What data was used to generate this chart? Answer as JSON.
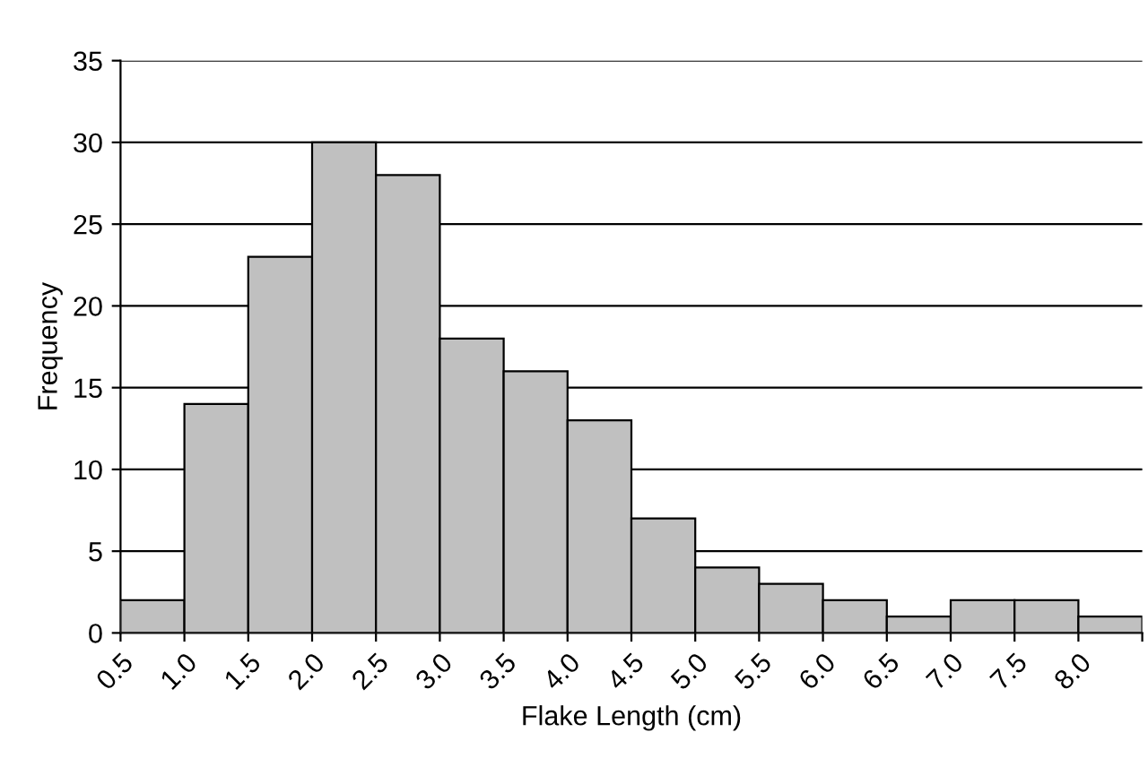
{
  "chart_data": {
    "type": "histogram",
    "xlabel": "Flake Length (cm)",
    "ylabel": "Frequency",
    "bins": [
      0.5,
      1.0,
      1.5,
      2.0,
      2.5,
      3.0,
      3.5,
      4.0,
      4.5,
      5.0,
      5.5,
      6.0,
      6.5,
      7.0,
      7.5,
      8.0,
      8.5
    ],
    "values": [
      2,
      14,
      23,
      30,
      28,
      18,
      16,
      13,
      7,
      4,
      3,
      2,
      1,
      2,
      2,
      1
    ],
    "color": "#c0c0c0",
    "xlim": [
      0.5,
      8.5
    ],
    "xticks": [
      {
        "value": 0.5,
        "label": "0.5"
      },
      {
        "value": 1.0,
        "label": "1.0"
      },
      {
        "value": 1.5,
        "label": "1.5"
      },
      {
        "value": 2.0,
        "label": "2.0"
      },
      {
        "value": 2.5,
        "label": "2.5"
      },
      {
        "value": 3.0,
        "label": "3.0"
      },
      {
        "value": 3.5,
        "label": "3.5"
      },
      {
        "value": 4.0,
        "label": "4.0"
      },
      {
        "value": 4.5,
        "label": "4.5"
      },
      {
        "value": 5.0,
        "label": "5.0"
      },
      {
        "value": 5.5,
        "label": "5.5"
      },
      {
        "value": 6.0,
        "label": "6.0"
      },
      {
        "value": 6.5,
        "label": "6.5"
      },
      {
        "value": 7.0,
        "label": "7.0"
      },
      {
        "value": 7.5,
        "label": "7.5"
      },
      {
        "value": 8.0,
        "label": "8.0"
      },
      {
        "value": 8.5,
        "label": null
      }
    ],
    "ylim": [
      0,
      35
    ],
    "yticks": [
      0,
      5,
      10,
      15,
      20,
      25,
      30,
      35
    ],
    "grid": "y"
  }
}
